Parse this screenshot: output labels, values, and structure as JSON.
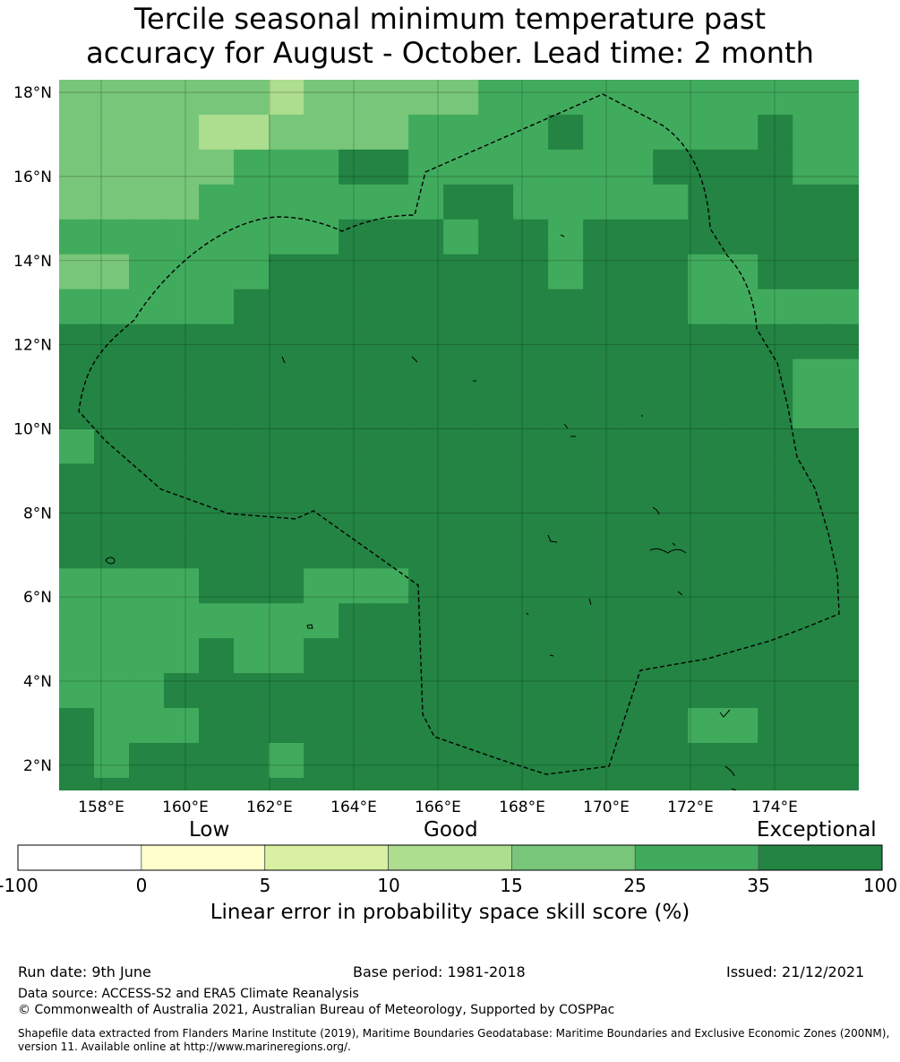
{
  "title": {
    "line1": "Tercile seasonal minimum temperature past",
    "line2": "accuracy for August - October. Lead time: 2 month"
  },
  "map": {
    "lat_labels": [
      "18°N",
      "16°N",
      "14°N",
      "12°N",
      "10°N",
      "8°N",
      "6°N",
      "4°N",
      "2°N"
    ],
    "lon_labels": [
      "158°E",
      "160°E",
      "162°E",
      "164°E",
      "166°E",
      "168°E",
      "170°E",
      "172°E",
      "174°E"
    ],
    "lon_range": [
      157,
      176
    ],
    "lat_range": [
      1.4,
      18.3
    ],
    "grid_origin": {
      "lon": 157,
      "lat": 18.3
    },
    "grid_step_deg": 0.83,
    "cell_color_codes": [
      "#ffffff",
      "#ffffcc",
      "#d9f0a3",
      "#addd8e",
      "#78c679",
      "#41ab5d",
      "#238443"
    ],
    "cells": [
      "4444443444445555555555555",
      "4444334444555565555565566",
      "4444455566555555566665566",
      "4444555555566555556666666",
      "5555555566656656666666655",
      "4455556666666656665566665",
      "5555566666666666665555555",
      "6666666666666666666666666",
      "6666666666666666666665566",
      "6666666666666666666665566",
      "5666666666666666666666666",
      "6666666666666666666666666",
      "6666666666666666666666666",
      "6666666666666666666666666",
      "5555666555666666666666666",
      "5555555566666666666666666",
      "5555655666666666666666666",
      "5556666666666666666666665",
      "6555666666666666665566666",
      "6566665666666666666666666",
      "6666666666666666666666666",
      "5666666666666666666666666",
      "5555666666666656666666666",
      "5555556666666666666666666",
      "5555555566666555556666666",
      "5555555666666555555555555"
    ]
  },
  "colorbar": {
    "words": {
      "low": "Low",
      "good": "Good",
      "exceptional": "Exceptional"
    },
    "colors": [
      "#ffffff",
      "#ffffcc",
      "#d9f0a3",
      "#addd8e",
      "#78c679",
      "#41ab5d",
      "#238443"
    ],
    "ticks": [
      "-100",
      "0",
      "5",
      "10",
      "15",
      "25",
      "35",
      "100"
    ],
    "label": "Linear error in probability space skill score (%)"
  },
  "footer": {
    "run_date": "Run date: 9th June",
    "base_period": "Base period: 1981-2018",
    "issued": "Issued: 21/12/2021",
    "data_source": "Data source: ACCESS-S2 and ERA5 Climate Reanalysis",
    "copyright": "© Commonwealth of Australia 2021, Australian Bureau of Meteorology, Supported by COSPPac",
    "shapefile_note": "Shapefile data extracted from Flanders Marine Institute (2019), Maritime Boundaries Geodatabase: Maritime Boundaries and Exclusive Economic Zones (200NM), version 11. Available online at http://www.marineregions.org/."
  }
}
